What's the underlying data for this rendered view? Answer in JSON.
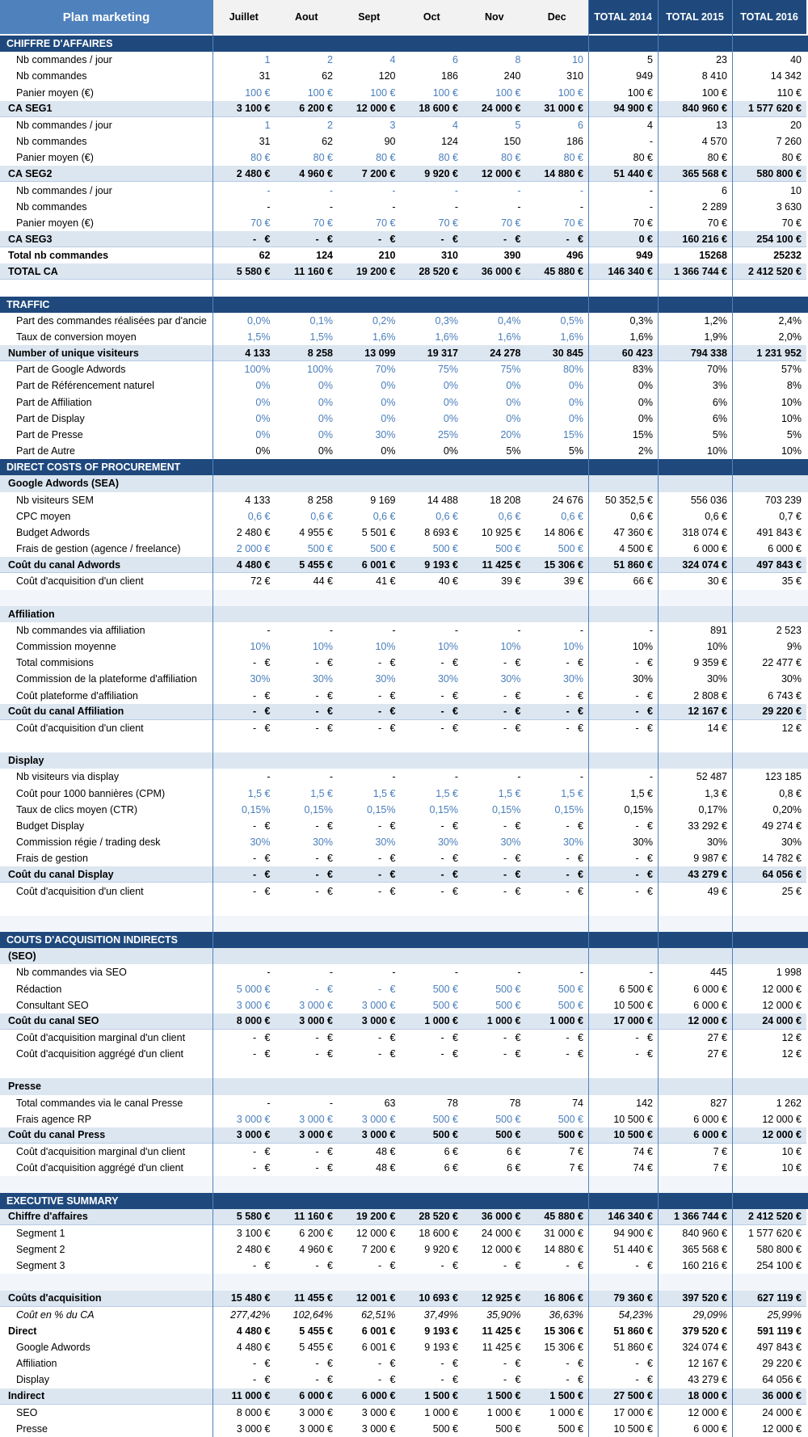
{
  "header": {
    "title": "Plan marketing",
    "columns": [
      "Juillet",
      "Aout",
      "Sept",
      "Oct",
      "Nov",
      "Dec",
      "TOTAL 2014",
      "TOTAL 2015",
      "TOTAL 2016"
    ]
  },
  "rows": [
    {
      "label": "CHIFFRE D'AFFAIRES",
      "style": "section"
    },
    {
      "label": "Nb commandes / jour",
      "style": "input",
      "cells": [
        "1",
        "2",
        "4",
        "6",
        "8",
        "10",
        "5",
        "23",
        "40"
      ]
    },
    {
      "label": "Nb commandes",
      "cells": [
        "31",
        "62",
        "120",
        "186",
        "240",
        "310",
        "949",
        "8 410",
        "14 342"
      ]
    },
    {
      "label": "Panier moyen (€)",
      "style": "input",
      "cells": [
        "100 €",
        "100 €",
        "100 €",
        "100 €",
        "100 €",
        "100 €",
        "100 €",
        "100 €",
        "110 €"
      ]
    },
    {
      "label": "CA SEG1",
      "style": "total",
      "cells": [
        "3 100 €",
        "6 200 €",
        "12 000 €",
        "18 600 €",
        "24 000 €",
        "31 000 €",
        "94 900 €",
        "840 960 €",
        "1 577 620 €"
      ]
    },
    {
      "label": "Nb commandes / jour",
      "style": "input",
      "cells": [
        "1",
        "2",
        "3",
        "4",
        "5",
        "6",
        "4",
        "13",
        "20"
      ]
    },
    {
      "label": "Nb commandes",
      "cells": [
        "31",
        "62",
        "90",
        "124",
        "150",
        "186",
        "-",
        "4 570",
        "7 260"
      ]
    },
    {
      "label": "Panier moyen (€)",
      "style": "input",
      "cells": [
        "80 €",
        "80 €",
        "80 €",
        "80 €",
        "80 €",
        "80 €",
        "80 €",
        "80 €",
        "80 €"
      ]
    },
    {
      "label": "CA SEG2",
      "style": "total",
      "cells": [
        "2 480 €",
        "4 960 €",
        "7 200 €",
        "9 920 €",
        "12 000 €",
        "14 880 €",
        "51 440 €",
        "365 568 €",
        "580 800 €"
      ]
    },
    {
      "label": "Nb commandes / jour",
      "style": "input",
      "cells": [
        "-",
        "-",
        "-",
        "-",
        "-",
        "-",
        "-",
        "6",
        "10"
      ]
    },
    {
      "label": "Nb commandes",
      "cells": [
        "-",
        "-",
        "-",
        "-",
        "-",
        "-",
        "-",
        "2 289",
        "3 630"
      ]
    },
    {
      "label": "Panier moyen (€)",
      "style": "input",
      "cells": [
        "70 €",
        "70 €",
        "70 €",
        "70 €",
        "70 €",
        "70 €",
        "70 €",
        "70 €",
        "70 €"
      ]
    },
    {
      "label": "CA SEG3",
      "style": "total",
      "cells": [
        "-   €",
        "-   €",
        "-   €",
        "-   €",
        "-   €",
        "-   €",
        "0 €",
        "160 216 €",
        "254 100 €"
      ]
    },
    {
      "label": "Total nb commandes",
      "style": "bold",
      "cells": [
        "62",
        "124",
        "210",
        "310",
        "390",
        "496",
        "949",
        "15268",
        "25232"
      ]
    },
    {
      "label": "TOTAL CA",
      "style": "total",
      "cells": [
        "5 580 €",
        "11 160 €",
        "19 200 €",
        "28 520 €",
        "36 000 €",
        "45 880 €",
        "146 340 €",
        "1 366 744 €",
        "2 412 520 €"
      ]
    },
    {
      "style": "spacer"
    },
    {
      "label": "TRAFFIC",
      "style": "section"
    },
    {
      "label": "Part des commandes réalisées par d'ancie",
      "style": "input",
      "cells": [
        "0,0%",
        "0,1%",
        "0,2%",
        "0,3%",
        "0,4%",
        "0,5%",
        "0,3%",
        "1,2%",
        "2,4%"
      ]
    },
    {
      "label": "Taux de conversion moyen",
      "style": "input",
      "cells": [
        "1,5%",
        "1,5%",
        "1,6%",
        "1,6%",
        "1,6%",
        "1,6%",
        "1,6%",
        "1,9%",
        "2,0%"
      ]
    },
    {
      "label": "Number of unique visiteurs",
      "style": "total",
      "cells": [
        "4 133",
        "8 258",
        "13 099",
        "19 317",
        "24 278",
        "30 845",
        "60 423",
        "794 338",
        "1 231 952"
      ]
    },
    {
      "label": "Part de Google Adwords",
      "style": "input",
      "cells": [
        "100%",
        "100%",
        "70%",
        "75%",
        "75%",
        "80%",
        "83%",
        "70%",
        "57%"
      ]
    },
    {
      "label": "Part de Référencement naturel",
      "style": "input",
      "cells": [
        "0%",
        "0%",
        "0%",
        "0%",
        "0%",
        "0%",
        "0%",
        "3%",
        "8%"
      ]
    },
    {
      "label": "Part de Affiliation",
      "style": "input",
      "cells": [
        "0%",
        "0%",
        "0%",
        "0%",
        "0%",
        "0%",
        "0%",
        "6%",
        "10%"
      ]
    },
    {
      "label": "Part de Display",
      "style": "input",
      "cells": [
        "0%",
        "0%",
        "0%",
        "0%",
        "0%",
        "0%",
        "0%",
        "6%",
        "10%"
      ]
    },
    {
      "label": "Part de Presse",
      "style": "input",
      "cells": [
        "0%",
        "0%",
        "30%",
        "25%",
        "20%",
        "15%",
        "15%",
        "5%",
        "5%"
      ]
    },
    {
      "label": "Part de Autre",
      "cells": [
        "0%",
        "0%",
        "0%",
        "0%",
        "5%",
        "5%",
        "2%",
        "10%",
        "10%"
      ]
    },
    {
      "label": "DIRECT COSTS OF PROCUREMENT",
      "style": "section"
    },
    {
      "label": "Google Adwords (SEA)",
      "style": "sub"
    },
    {
      "label": "Nb visiteurs SEM",
      "cells": [
        "4 133",
        "8 258",
        "9 169",
        "14 488",
        "18 208",
        "24 676",
        "50 352,5 €",
        "556 036",
        "703 239"
      ]
    },
    {
      "label": "CPC moyen",
      "style": "input",
      "cells": [
        "0,6 €",
        "0,6 €",
        "0,6 €",
        "0,6 €",
        "0,6 €",
        "0,6 €",
        "0,6 €",
        "0,6 €",
        "0,7 €"
      ]
    },
    {
      "label": "Budget Adwords",
      "cells": [
        "2 480 €",
        "4 955 €",
        "5 501 €",
        "8 693 €",
        "10 925 €",
        "14 806 €",
        "47 360 €",
        "318 074 €",
        "491 843 €"
      ]
    },
    {
      "label": "Frais de gestion (agence / freelance)",
      "style": "input",
      "cells": [
        "2 000 €",
        "500 €",
        "500 €",
        "500 €",
        "500 €",
        "500 €",
        "4 500 €",
        "6 000 €",
        "6 000 €"
      ]
    },
    {
      "label": "Coût du canal Adwords",
      "style": "total",
      "cells": [
        "4 480 €",
        "5 455 €",
        "6 001 €",
        "9 193 €",
        "11 425 €",
        "15 306 €",
        "51 860 €",
        "324 074 €",
        "497 843 €"
      ]
    },
    {
      "label": "Coût d'acquisition d'un client",
      "cells": [
        "72 €",
        "44 €",
        "41 €",
        "40 €",
        "39 €",
        "39 €",
        "66 €",
        "30 €",
        "35 €"
      ]
    },
    {
      "style": "spacer"
    },
    {
      "label": "Affiliation",
      "style": "sub"
    },
    {
      "label": "Nb commandes via affiliation",
      "cells": [
        "-",
        "-",
        "-",
        "-",
        "-",
        "-",
        "-",
        "891",
        "2 523"
      ]
    },
    {
      "label": "Commission moyenne",
      "style": "input",
      "cells": [
        "10%",
        "10%",
        "10%",
        "10%",
        "10%",
        "10%",
        "10%",
        "10%",
        "9%"
      ]
    },
    {
      "label": "Total commisions",
      "cells": [
        "-   €",
        "-   €",
        "-   €",
        "-   €",
        "-   €",
        "-   €",
        "-   €",
        "9 359 €",
        "22 477 €"
      ]
    },
    {
      "label": "Commission de la plateforme d'affiliation",
      "style": "input",
      "cells": [
        "30%",
        "30%",
        "30%",
        "30%",
        "30%",
        "30%",
        "30%",
        "30%",
        "30%"
      ]
    },
    {
      "label": "Coût plateforme d'affiliation",
      "cells": [
        "-   €",
        "-   €",
        "-   €",
        "-   €",
        "-   €",
        "-   €",
        "-   €",
        "2 808 €",
        "6 743 €"
      ]
    },
    {
      "label": "Coût du canal Affiliation",
      "style": "total",
      "cells": [
        "-   €",
        "-   €",
        "-   €",
        "-   €",
        "-   €",
        "-   €",
        "-   €",
        "12 167 €",
        "29 220 €"
      ]
    },
    {
      "label": "Coût d'acquisition d'un client",
      "cells": [
        "-   €",
        "-   €",
        "-   €",
        "-   €",
        "-   €",
        "-   €",
        "-   €",
        "14 €",
        "12 €"
      ]
    },
    {
      "style": "spacer"
    },
    {
      "label": "Display",
      "style": "sub"
    },
    {
      "label": "Nb visiteurs via display",
      "cells": [
        "-",
        "-",
        "-",
        "-",
        "-",
        "-",
        "-",
        "52 487",
        "123 185"
      ]
    },
    {
      "label": "Coût pour 1000 bannières (CPM)",
      "style": "input",
      "cells": [
        "1,5 €",
        "1,5 €",
        "1,5 €",
        "1,5 €",
        "1,5 €",
        "1,5 €",
        "1,5 €",
        "1,3 €",
        "0,8 €"
      ]
    },
    {
      "label": "Taux de clics moyen (CTR)",
      "style": "input",
      "cells": [
        "0,15%",
        "0,15%",
        "0,15%",
        "0,15%",
        "0,15%",
        "0,15%",
        "0,15%",
        "0,17%",
        "0,20%"
      ]
    },
    {
      "label": "Budget Display",
      "cells": [
        "-   €",
        "-   €",
        "-   €",
        "-   €",
        "-   €",
        "-   €",
        "-   €",
        "33 292 €",
        "49 274 €"
      ]
    },
    {
      "label": "Commission régie / trading desk",
      "style": "input",
      "cells": [
        "30%",
        "30%",
        "30%",
        "30%",
        "30%",
        "30%",
        "30%",
        "30%",
        "30%"
      ]
    },
    {
      "label": "Frais de gestion",
      "cells": [
        "-   €",
        "-   €",
        "-   €",
        "-   €",
        "-   €",
        "-   €",
        "-   €",
        "9 987 €",
        "14 782 €"
      ]
    },
    {
      "label": "Coût du canal Display",
      "style": "total",
      "cells": [
        "-   €",
        "-   €",
        "-   €",
        "-   €",
        "-   €",
        "-   €",
        "-   €",
        "43 279 €",
        "64 056 €"
      ]
    },
    {
      "label": "Coût d'acquisition d'un client",
      "cells": [
        "-   €",
        "-   €",
        "-   €",
        "-   €",
        "-   €",
        "-   €",
        "-   €",
        "49 €",
        "25 €"
      ]
    },
    {
      "style": "spacer"
    },
    {
      "style": "spacer"
    },
    {
      "label": "COUTS D'ACQUISITION INDIRECTS",
      "style": "section"
    },
    {
      "label": "(SEO)",
      "style": "sub"
    },
    {
      "label": "Nb commandes via SEO",
      "cells": [
        "-",
        "-",
        "-",
        "-",
        "-",
        "-",
        "-",
        "445",
        "1 998"
      ]
    },
    {
      "label": "Rédaction",
      "style": "input",
      "cells": [
        "5 000 €",
        "-   €",
        "-   €",
        "500 €",
        "500 €",
        "500 €",
        "6 500 €",
        "6 000 €",
        "12 000 €"
      ]
    },
    {
      "label": "Consultant SEO",
      "style": "input",
      "cells": [
        "3 000 €",
        "3 000 €",
        "3 000 €",
        "500 €",
        "500 €",
        "500 €",
        "10 500 €",
        "6 000 €",
        "12 000 €"
      ]
    },
    {
      "label": "Coût du canal SEO",
      "style": "total",
      "cells": [
        "8 000 €",
        "3 000 €",
        "3 000 €",
        "1 000 €",
        "1 000 €",
        "1 000 €",
        "17 000 €",
        "12 000 €",
        "24 000 €"
      ]
    },
    {
      "label": "Coût d'acquisition marginal d'un client",
      "cells": [
        "-   €",
        "-   €",
        "-   €",
        "-   €",
        "-   €",
        "-   €",
        "-   €",
        "27 €",
        "12 €"
      ]
    },
    {
      "label": "Coût d'acquisition aggrégé d'un client",
      "cells": [
        "-   €",
        "-   €",
        "-   €",
        "-   €",
        "-   €",
        "-   €",
        "-   €",
        "27 €",
        "12 €"
      ]
    },
    {
      "style": "spacer"
    },
    {
      "label": "Presse",
      "style": "sub"
    },
    {
      "label": "Total commandes via le canal Presse",
      "cells": [
        "-",
        "-",
        "63",
        "78",
        "78",
        "74",
        "142",
        "827",
        "1 262"
      ]
    },
    {
      "label": "Frais agence RP",
      "style": "input",
      "cells": [
        "3 000 €",
        "3 000 €",
        "3 000 €",
        "500 €",
        "500 €",
        "500 €",
        "10 500 €",
        "6 000 €",
        "12 000 €"
      ]
    },
    {
      "label": "Coût du canal Press",
      "style": "total",
      "cells": [
        "3 000 €",
        "3 000 €",
        "3 000 €",
        "500 €",
        "500 €",
        "500 €",
        "10 500 €",
        "6 000 €",
        "12 000 €"
      ]
    },
    {
      "label": "Coût d'acquisition marginal d'un client",
      "cells": [
        "-   €",
        "-   €",
        "48 €",
        "6 €",
        "6 €",
        "7 €",
        "74 €",
        "7 €",
        "10 €"
      ]
    },
    {
      "label": "Coût d'acquisition aggrégé d'un client",
      "cells": [
        "-   €",
        "-   €",
        "48 €",
        "6 €",
        "6 €",
        "7 €",
        "74 €",
        "7 €",
        "10 €"
      ]
    },
    {
      "style": "spacer"
    },
    {
      "label": "EXECUTIVE SUMMARY",
      "style": "section"
    },
    {
      "label": "Chiffre d'affaires",
      "style": "total",
      "cells": [
        "5 580 €",
        "11 160 €",
        "19 200 €",
        "28 520 €",
        "36 000 €",
        "45 880 €",
        "146 340 €",
        "1 366 744 €",
        "2 412 520 €"
      ]
    },
    {
      "label": "Segment 1",
      "cells": [
        "3 100 €",
        "6 200 €",
        "12 000 €",
        "18 600 €",
        "24 000 €",
        "31 000 €",
        "94 900 €",
        "840 960 €",
        "1 577 620 €"
      ]
    },
    {
      "label": "Segment 2",
      "cells": [
        "2 480 €",
        "4 960 €",
        "7 200 €",
        "9 920 €",
        "12 000 €",
        "14 880 €",
        "51 440 €",
        "365 568 €",
        "580 800 €"
      ]
    },
    {
      "label": "Segment 3",
      "cells": [
        "-   €",
        "-   €",
        "-   €",
        "-   €",
        "-   €",
        "-   €",
        "-   €",
        "160 216 €",
        "254 100 €"
      ]
    },
    {
      "style": "spacer"
    },
    {
      "label": "Coûts d'acquisition",
      "style": "total",
      "cells": [
        "15 480 €",
        "11 455 €",
        "12 001 €",
        "10 693 €",
        "12 925 €",
        "16 806 €",
        "79 360 €",
        "397 520 €",
        "627 119 €"
      ]
    },
    {
      "label": "Coût en % du CA",
      "style": "italic",
      "cells": [
        "277,42%",
        "102,64%",
        "62,51%",
        "37,49%",
        "35,90%",
        "36,63%",
        "54,23%",
        "29,09%",
        "25,99%"
      ]
    },
    {
      "label": "Direct",
      "style": "bold",
      "cells": [
        "4 480 €",
        "5 455 €",
        "6 001 €",
        "9 193 €",
        "11 425 €",
        "15 306 €",
        "51 860 €",
        "379 520 €",
        "591 119 €"
      ]
    },
    {
      "label": "Google Adwords",
      "cells": [
        "4 480 €",
        "5 455 €",
        "6 001 €",
        "9 193 €",
        "11 425 €",
        "15 306 €",
        "51 860 €",
        "324 074 €",
        "497 843 €"
      ]
    },
    {
      "label": "Affiliation",
      "cells": [
        "-   €",
        "-   €",
        "-   €",
        "-   €",
        "-   €",
        "-   €",
        "-   €",
        "12 167 €",
        "29 220 €"
      ]
    },
    {
      "label": "Display",
      "cells": [
        "-   €",
        "-   €",
        "-   €",
        "-   €",
        "-   €",
        "-   €",
        "-   €",
        "43 279 €",
        "64 056 €"
      ]
    },
    {
      "label": "Indirect",
      "style": "total",
      "cells": [
        "11 000 €",
        "6 000 €",
        "6 000 €",
        "1 500 €",
        "1 500 €",
        "1 500 €",
        "27 500 €",
        "18 000 €",
        "36 000 €"
      ]
    },
    {
      "label": "SEO",
      "cells": [
        "8 000 €",
        "3 000 €",
        "3 000 €",
        "1 000 €",
        "1 000 €",
        "1 000 €",
        "17 000 €",
        "12 000 €",
        "24 000 €"
      ]
    },
    {
      "label": "Presse",
      "cells": [
        "3 000 €",
        "3 000 €",
        "3 000 €",
        "500 €",
        "500 €",
        "500 €",
        "10 500 €",
        "6 000 €",
        "12 000 €"
      ]
    }
  ]
}
